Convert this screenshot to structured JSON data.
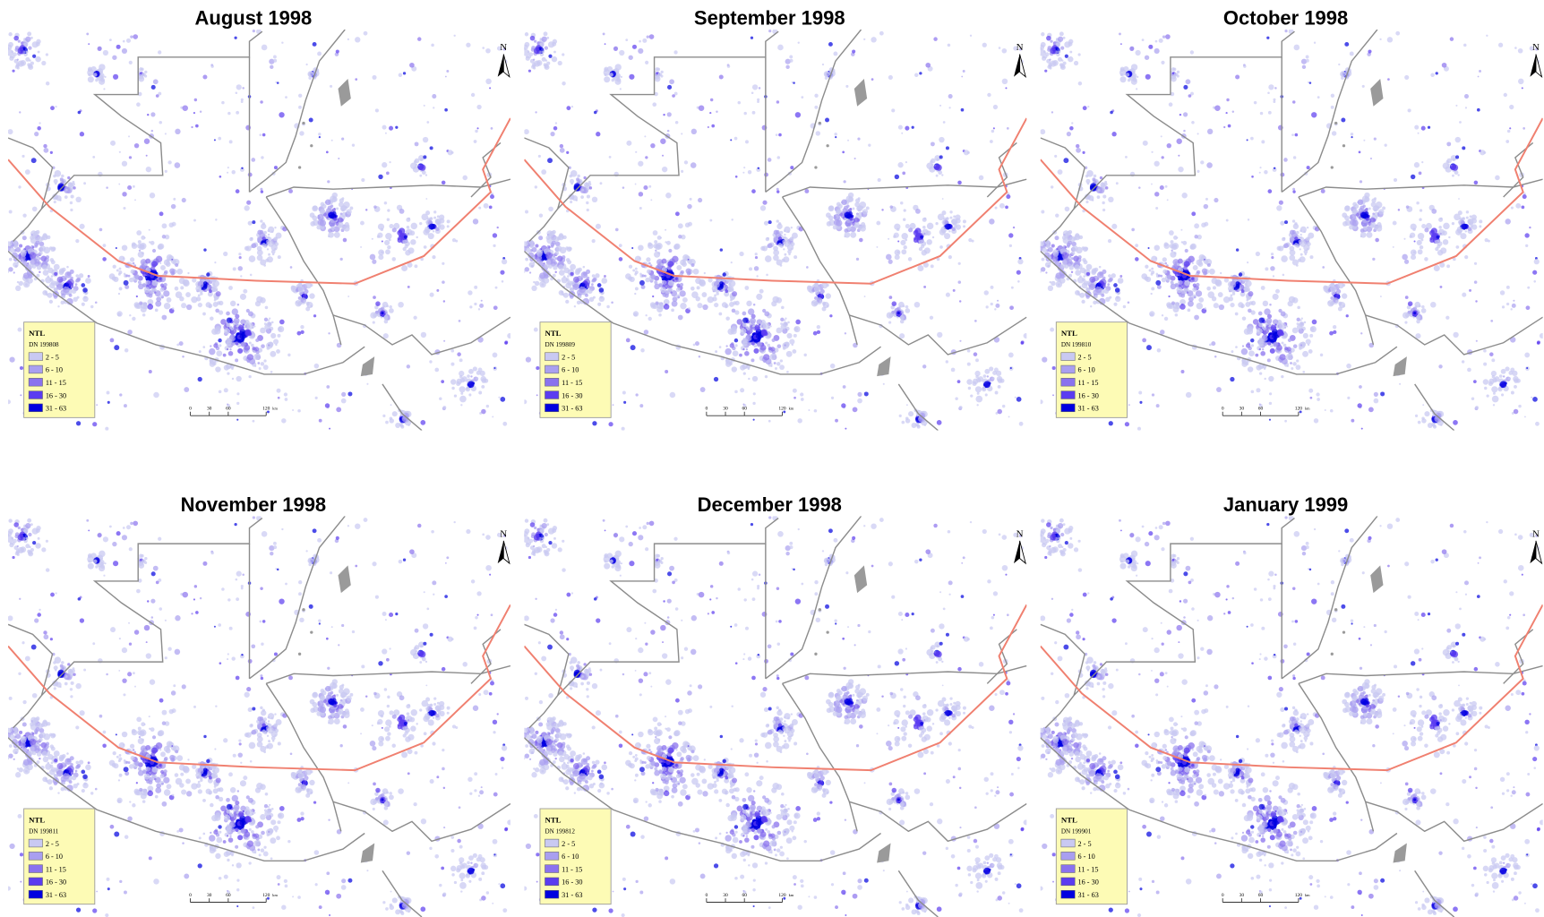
{
  "panels": [
    {
      "title": "August 1998",
      "legend_subtitle": "DN 199808"
    },
    {
      "title": "September 1998",
      "legend_subtitle": "DN 199809"
    },
    {
      "title": "October 1998",
      "legend_subtitle": "DN 199810"
    },
    {
      "title": "November 1998",
      "legend_subtitle": "DN 199811"
    },
    {
      "title": "December 1998",
      "legend_subtitle": "DN 199812"
    },
    {
      "title": "January 1999",
      "legend_subtitle": "DN 199901"
    }
  ],
  "legend": {
    "title": "NTL",
    "classes": [
      {
        "label": "2 - 5",
        "color": "#c9c9f2"
      },
      {
        "label": "6 - 10",
        "color": "#a99ff0"
      },
      {
        "label": "11 - 15",
        "color": "#8a72ee"
      },
      {
        "label": "16 - 30",
        "color": "#5b3cf0"
      },
      {
        "label": "31 - 63",
        "color": "#0000e0"
      }
    ]
  },
  "scale_bar": {
    "ticks": [
      0,
      30,
      60,
      120
    ],
    "unit": "km"
  },
  "north_label": "N"
}
